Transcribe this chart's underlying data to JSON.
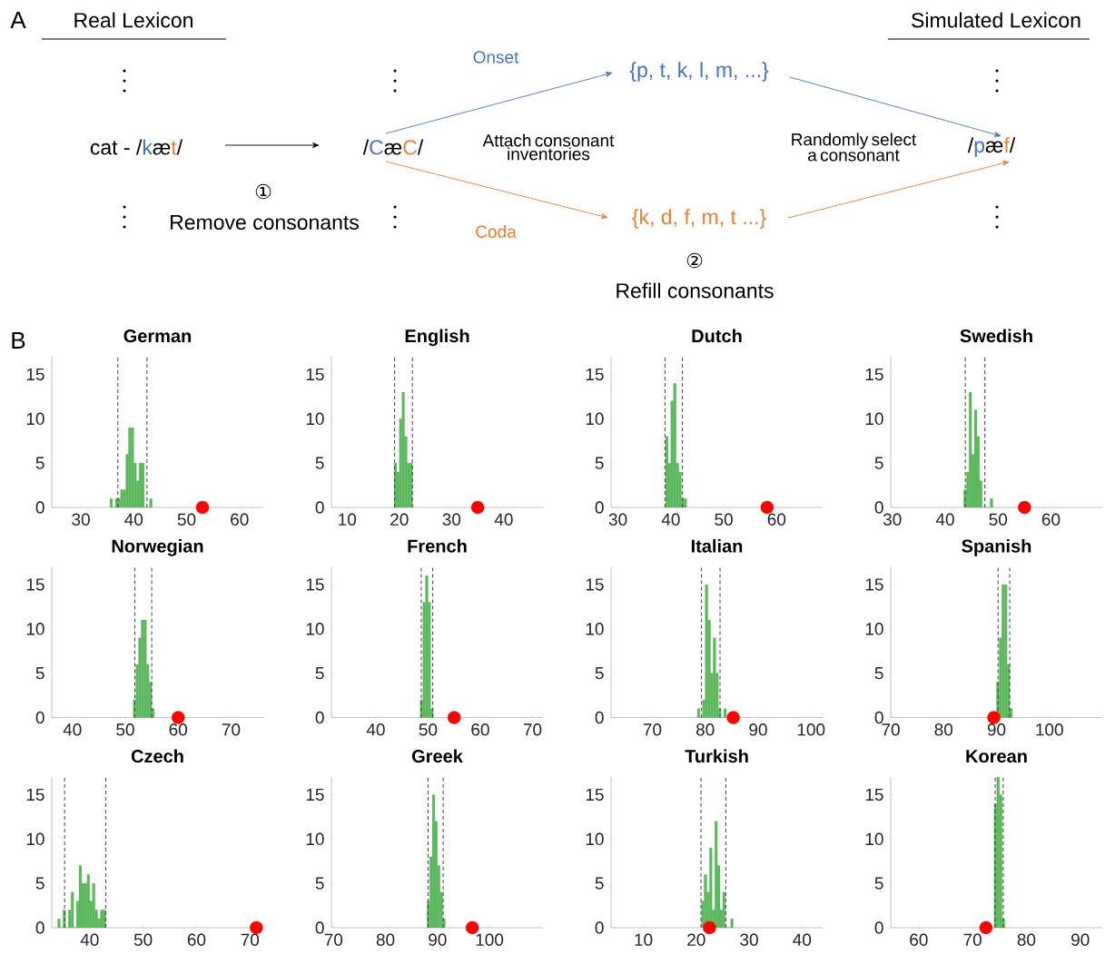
{
  "chart_data": [
    {
      "type": "other",
      "annotations": [
        "A",
        "Real Lexicon",
        "Simulated Lexicon",
        "cat - /",
        "k",
        "æ",
        "t",
        "/",
        "/",
        "C",
        "æ",
        "C",
        "/",
        "Onset",
        "Coda",
        "{p, t, k, l, m, ...}",
        "{k, d, f, m, t ...}",
        "Attach consonant inventories",
        "Randomly select a consonant",
        "①",
        "Remove consonants",
        "②",
        "Refill consonants",
        "/",
        "p",
        "æ",
        "f",
        "/",
        "B"
      ],
      "colors": [
        null,
        null,
        null,
        null,
        "#4472c4",
        null,
        "#ed7d31",
        null,
        null,
        "#4472c4",
        null,
        "#ed7d31",
        null,
        "#4472c4",
        "#ed7d31",
        "#4472c4",
        "#ed7d31",
        null,
        null,
        null,
        null,
        null,
        null,
        null,
        "#4472c4",
        null,
        "#ed7d31",
        null,
        null
      ]
    },
    {
      "type": "histogram",
      "title": "German",
      "bins": [
        35.5,
        36,
        36.5,
        37,
        37.5,
        38,
        38.5,
        39,
        39.5,
        40,
        40.5,
        41,
        41.5,
        42,
        42.5,
        43,
        43.5
      ],
      "values": [
        1,
        0,
        1,
        1,
        2,
        2,
        6,
        9,
        9,
        5,
        3,
        5,
        5,
        0,
        0,
        1
      ],
      "color": "#5cb85c",
      "xlim": [
        24.5,
        64.5
      ],
      "xticks": [
        30,
        40,
        50,
        60
      ],
      "ylim": [
        0,
        17
      ],
      "yticks": [
        0,
        5,
        10,
        15
      ],
      "ref_lines": [
        {
          "axis": "x",
          "value": 37,
          "line_style": "dashed",
          "color": "#404040"
        },
        {
          "axis": "x",
          "value": 42.5,
          "line_style": "dashed",
          "color": "#404040"
        }
      ],
      "series": [
        {
          "type": "scatter",
          "x": [
            53
          ],
          "values": [
            0
          ],
          "color": "#ff0000",
          "marker": "circle"
        }
      ]
    },
    {
      "type": "histogram",
      "title": "English",
      "bins": [
        19,
        19.5,
        20,
        20.5,
        21,
        21.5,
        22,
        22.5
      ],
      "values": [
        5,
        4,
        10,
        13,
        8,
        5,
        5
      ],
      "color": "#5cb85c",
      "xlim": [
        7,
        47.5
      ],
      "xticks": [
        10,
        20,
        30,
        40
      ],
      "ylim": [
        0,
        17
      ],
      "yticks": [
        0,
        5,
        10,
        15
      ],
      "ref_lines": [
        {
          "axis": "x",
          "value": 19.1,
          "line_style": "dashed",
          "color": "#404040"
        },
        {
          "axis": "x",
          "value": 22.5,
          "line_style": "dashed",
          "color": "#404040"
        }
      ],
      "series": [
        {
          "type": "scatter",
          "x": [
            35
          ],
          "values": [
            0
          ],
          "color": "#ff0000",
          "marker": "circle"
        }
      ]
    },
    {
      "type": "histogram",
      "title": "Dutch",
      "bins": [
        39,
        39.5,
        40,
        40.5,
        41,
        41.5,
        42,
        42.5,
        43
      ],
      "values": [
        8,
        5,
        12,
        14,
        5,
        4,
        1,
        1
      ],
      "color": "#5cb85c",
      "xlim": [
        28.7,
        68.7
      ],
      "xticks": [
        30,
        40,
        50,
        60
      ],
      "ylim": [
        0,
        17
      ],
      "yticks": [
        0,
        5,
        10,
        15
      ],
      "ref_lines": [
        {
          "axis": "x",
          "value": 38.9,
          "line_style": "dashed",
          "color": "#404040"
        },
        {
          "axis": "x",
          "value": 42.2,
          "line_style": "dashed",
          "color": "#404040"
        }
      ],
      "series": [
        {
          "type": "scatter",
          "x": [
            58.2
          ],
          "values": [
            0
          ],
          "color": "#ff0000",
          "marker": "circle"
        }
      ]
    },
    {
      "type": "histogram",
      "title": "Swedish",
      "bins": [
        43.5,
        44,
        44.5,
        45,
        45.5,
        46,
        46.5,
        47,
        47.5,
        48,
        48.5,
        49
      ],
      "values": [
        2,
        4,
        13,
        6,
        11,
        8,
        3,
        0,
        0,
        0,
        1
      ],
      "color": "#5cb85c",
      "xlim": [
        29.7,
        69.7
      ],
      "xticks": [
        30,
        40,
        50,
        60
      ],
      "ylim": [
        0,
        17
      ],
      "yticks": [
        0,
        5,
        10,
        15
      ],
      "ref_lines": [
        {
          "axis": "x",
          "value": 43.8,
          "line_style": "dashed",
          "color": "#404040"
        },
        {
          "axis": "x",
          "value": 47.5,
          "line_style": "dashed",
          "color": "#404040"
        }
      ],
      "series": [
        {
          "type": "scatter",
          "x": [
            55
          ],
          "values": [
            0
          ],
          "color": "#ff0000",
          "marker": "circle"
        }
      ]
    },
    {
      "type": "histogram",
      "title": "Norwegian",
      "bins": [
        51.5,
        52,
        52.5,
        53,
        53.5,
        54,
        54.5,
        55,
        55.5
      ],
      "values": [
        2,
        6,
        9,
        11,
        11,
        6,
        4,
        1
      ],
      "color": "#5cb85c",
      "xlim": [
        36.1,
        76.1
      ],
      "xticks": [
        40,
        50,
        60,
        70
      ],
      "ylim": [
        0,
        17
      ],
      "yticks": [
        0,
        5,
        10,
        15
      ],
      "ref_lines": [
        {
          "axis": "x",
          "value": 51.8,
          "line_style": "dashed",
          "color": "#404040"
        },
        {
          "axis": "x",
          "value": 55,
          "line_style": "dashed",
          "color": "#404040"
        }
      ],
      "series": [
        {
          "type": "scatter",
          "x": [
            60
          ],
          "values": [
            0
          ],
          "color": "#ff0000",
          "marker": "circle"
        }
      ]
    },
    {
      "type": "histogram",
      "title": "French",
      "bins": [
        48.5,
        49,
        49.5,
        50,
        50.5,
        51
      ],
      "values": [
        2,
        13,
        16,
        13,
        1
      ],
      "color": "#5cb85c",
      "xlim": [
        31.5,
        72
      ],
      "xticks": [
        40,
        50,
        60,
        70
      ],
      "ylim": [
        0,
        17
      ],
      "yticks": [
        0,
        5,
        10,
        15
      ],
      "ref_lines": [
        {
          "axis": "x",
          "value": 48.7,
          "line_style": "dashed",
          "color": "#404040"
        },
        {
          "axis": "x",
          "value": 50.9,
          "line_style": "dashed",
          "color": "#404040"
        }
      ],
      "series": [
        {
          "type": "scatter",
          "x": [
            55
          ],
          "values": [
            0
          ],
          "color": "#ff0000",
          "marker": "circle"
        }
      ]
    },
    {
      "type": "histogram",
      "title": "Italian",
      "bins": [
        78.5,
        79,
        79.5,
        80,
        80.5,
        81,
        81.5,
        82,
        82.5,
        83,
        83.5,
        84
      ],
      "values": [
        1,
        0,
        2,
        15,
        11,
        5,
        9,
        5,
        1,
        0,
        1
      ],
      "color": "#5cb85c",
      "xlim": [
        62.2,
        102.2
      ],
      "xticks": [
        70,
        80,
        90,
        100
      ],
      "ylim": [
        0,
        17
      ],
      "yticks": [
        0,
        5,
        10,
        15
      ],
      "ref_lines": [
        {
          "axis": "x",
          "value": 79.3,
          "line_style": "dashed",
          "color": "#404040"
        },
        {
          "axis": "x",
          "value": 82.8,
          "line_style": "dashed",
          "color": "#404040"
        }
      ],
      "series": [
        {
          "type": "scatter",
          "x": [
            85.3
          ],
          "values": [
            0
          ],
          "color": "#ff0000",
          "marker": "circle"
        }
      ]
    },
    {
      "type": "histogram",
      "title": "Spanish",
      "bins": [
        90,
        90.5,
        91,
        91.5,
        92,
        92.5,
        93
      ],
      "values": [
        4,
        9,
        15,
        15,
        6,
        1
      ],
      "color": "#5cb85c",
      "xlim": [
        70,
        110
      ],
      "xticks": [
        70,
        80,
        90,
        100
      ],
      "ylim": [
        0,
        17
      ],
      "yticks": [
        0,
        5,
        10,
        15
      ],
      "ref_lines": [
        {
          "axis": "x",
          "value": 90.3,
          "line_style": "dashed",
          "color": "#404040"
        },
        {
          "axis": "x",
          "value": 92.5,
          "line_style": "dashed",
          "color": "#404040"
        }
      ],
      "series": [
        {
          "type": "scatter",
          "x": [
            89.5
          ],
          "values": [
            0
          ],
          "color": "#ff0000",
          "marker": "circle"
        }
      ]
    },
    {
      "type": "histogram",
      "title": "Czech",
      "bins": [
        34,
        34.5,
        35,
        35.5,
        36,
        36.5,
        37,
        37.5,
        38,
        38.5,
        39,
        39.5,
        40,
        40.5,
        41,
        41.5,
        42,
        42.5,
        43
      ],
      "values": [
        1,
        0,
        2,
        0,
        2,
        4,
        0,
        3,
        7,
        5,
        5,
        6,
        3,
        5,
        2,
        1,
        2,
        2
      ],
      "color": "#5cb85c",
      "xlim": [
        32.9,
        72.5
      ],
      "xticks": [
        40,
        50,
        60,
        70
      ],
      "ylim": [
        0,
        17
      ],
      "yticks": [
        0,
        5,
        10,
        15
      ],
      "ref_lines": [
        {
          "axis": "x",
          "value": 35.3,
          "line_style": "dashed",
          "color": "#404040"
        },
        {
          "axis": "x",
          "value": 43,
          "line_style": "dashed",
          "color": "#404040"
        }
      ],
      "series": [
        {
          "type": "scatter",
          "x": [
            71.2
          ],
          "values": [
            0
          ],
          "color": "#ff0000",
          "marker": "circle"
        }
      ]
    },
    {
      "type": "histogram",
      "title": "Greek",
      "bins": [
        88,
        88.5,
        89,
        89.5,
        90,
        90.5,
        91,
        91.5
      ],
      "values": [
        3,
        8,
        15,
        12,
        7,
        4,
        1
      ],
      "color": "#5cb85c",
      "xlim": [
        69.6,
        110.3
      ],
      "xticks": [
        70,
        80,
        90,
        100
      ],
      "ylim": [
        0,
        17
      ],
      "yticks": [
        0,
        5,
        10,
        15
      ],
      "ref_lines": [
        {
          "axis": "x",
          "value": 88.2,
          "line_style": "dashed",
          "color": "#404040"
        },
        {
          "axis": "x",
          "value": 91.1,
          "line_style": "dashed",
          "color": "#404040"
        }
      ],
      "series": [
        {
          "type": "scatter",
          "x": [
            96.7
          ],
          "values": [
            0
          ],
          "color": "#ff0000",
          "marker": "circle"
        }
      ]
    },
    {
      "type": "histogram",
      "title": "Turkish",
      "bins": [
        21,
        21.5,
        22,
        22.5,
        23,
        23.5,
        24,
        24.5,
        25,
        25.5,
        26,
        26.5,
        27
      ],
      "values": [
        3,
        6,
        4,
        9,
        2,
        12,
        7,
        2,
        4,
        0,
        0,
        1
      ],
      "color": "#5cb85c",
      "xlim": [
        3.9,
        43.9
      ],
      "xticks": [
        10,
        20,
        30,
        40
      ],
      "ylim": [
        0,
        17
      ],
      "yticks": [
        0,
        5,
        10,
        15
      ],
      "ref_lines": [
        {
          "axis": "x",
          "value": 20.9,
          "line_style": "dashed",
          "color": "#404040"
        },
        {
          "axis": "x",
          "value": 25.6,
          "line_style": "dashed",
          "color": "#404040"
        }
      ],
      "series": [
        {
          "type": "scatter",
          "x": [
            22.5
          ],
          "values": [
            0
          ],
          "color": "#ff0000",
          "marker": "circle"
        }
      ]
    },
    {
      "type": "histogram",
      "title": "Korean",
      "bins": [
        74,
        74.5,
        75,
        75.5,
        76
      ],
      "values": [
        14,
        17,
        15,
        1
      ],
      "color": "#5cb85c",
      "xlim": [
        54.8,
        94.1
      ],
      "xticks": [
        60,
        70,
        80,
        90
      ],
      "ylim": [
        0,
        17
      ],
      "yticks": [
        0,
        5,
        10,
        15
      ],
      "ref_lines": [
        {
          "axis": "x",
          "value": 74.2,
          "line_style": "dashed",
          "color": "#404040"
        },
        {
          "axis": "x",
          "value": 75.7,
          "line_style": "dashed",
          "color": "#404040"
        }
      ],
      "series": [
        {
          "type": "scatter",
          "x": [
            72.5
          ],
          "values": [
            0
          ],
          "color": "#ff0000",
          "marker": "circle"
        }
      ]
    }
  ]
}
